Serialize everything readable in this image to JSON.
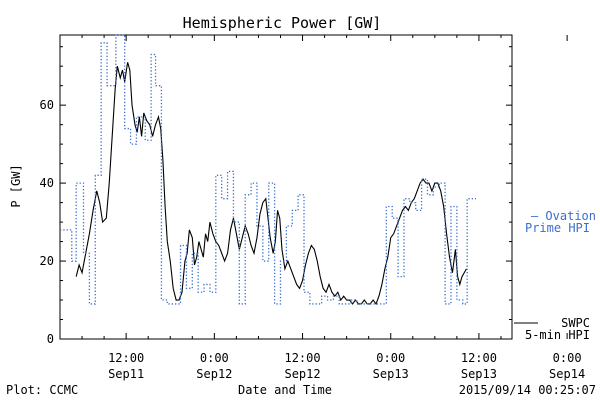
{
  "chart_data": {
    "type": "line",
    "title": "Hemispheric Power [GW]",
    "xlabel": "Date and Time",
    "ylabel": "P [GW]",
    "ylim": [
      0,
      78
    ],
    "xlim_hours": [
      0,
      61.5
    ],
    "y_ticks": [
      0,
      20,
      40,
      60
    ],
    "x_ticks": [
      {
        "hour": 9,
        "time": "12:00",
        "date": "Sep11"
      },
      {
        "hour": 21,
        "time": "0:00",
        "date": "Sep12"
      },
      {
        "hour": 33,
        "time": "12:00",
        "date": "Sep12"
      },
      {
        "hour": 45,
        "time": "0:00",
        "date": "Sep13"
      },
      {
        "hour": 57,
        "time": "12:00",
        "date": "Sep13"
      },
      {
        "hour": 69,
        "time": "0:00",
        "date": "Sep14"
      }
    ],
    "series": [
      {
        "name": "SWPC 5-min HPI",
        "legend_lines": [
          "SWPC",
          "5-min HPI"
        ],
        "color": "#000000",
        "style": "solid",
        "points": [
          [
            2.2,
            16
          ],
          [
            2.6,
            19
          ],
          [
            3.0,
            17
          ],
          [
            3.5,
            22
          ],
          [
            4.0,
            27
          ],
          [
            4.5,
            33
          ],
          [
            5.0,
            38
          ],
          [
            5.4,
            35
          ],
          [
            5.8,
            30
          ],
          [
            6.3,
            31
          ],
          [
            6.7,
            40
          ],
          [
            7.1,
            52
          ],
          [
            7.5,
            64
          ],
          [
            7.8,
            70
          ],
          [
            8.2,
            67
          ],
          [
            8.5,
            69
          ],
          [
            8.8,
            66
          ],
          [
            9.2,
            71
          ],
          [
            9.5,
            69
          ],
          [
            9.8,
            60
          ],
          [
            10.2,
            55
          ],
          [
            10.5,
            53
          ],
          [
            10.8,
            57
          ],
          [
            11.1,
            52
          ],
          [
            11.4,
            58
          ],
          [
            11.8,
            56
          ],
          [
            12.2,
            55
          ],
          [
            12.6,
            52
          ],
          [
            13.0,
            55
          ],
          [
            13.4,
            57
          ],
          [
            13.7,
            54
          ],
          [
            14.0,
            46
          ],
          [
            14.3,
            34
          ],
          [
            14.6,
            25
          ],
          [
            15.0,
            20
          ],
          [
            15.4,
            13
          ],
          [
            15.8,
            10
          ],
          [
            16.2,
            10
          ],
          [
            16.6,
            12
          ],
          [
            17.0,
            20
          ],
          [
            17.3,
            22
          ],
          [
            17.6,
            28
          ],
          [
            18.0,
            26
          ],
          [
            18.3,
            19
          ],
          [
            18.6,
            21
          ],
          [
            18.9,
            25
          ],
          [
            19.2,
            23
          ],
          [
            19.5,
            21
          ],
          [
            19.8,
            27
          ],
          [
            20.1,
            25
          ],
          [
            20.4,
            30
          ],
          [
            20.8,
            27
          ],
          [
            21.2,
            25
          ],
          [
            21.6,
            24
          ],
          [
            22.0,
            22
          ],
          [
            22.4,
            20
          ],
          [
            22.8,
            22
          ],
          [
            23.2,
            28
          ],
          [
            23.6,
            31
          ],
          [
            24.0,
            27
          ],
          [
            24.4,
            23
          ],
          [
            24.8,
            26
          ],
          [
            25.2,
            29
          ],
          [
            25.6,
            27
          ],
          [
            26.0,
            24
          ],
          [
            26.4,
            22
          ],
          [
            26.8,
            26
          ],
          [
            27.2,
            32
          ],
          [
            27.6,
            35
          ],
          [
            28.0,
            36
          ],
          [
            28.3,
            31
          ],
          [
            28.6,
            26
          ],
          [
            29.0,
            22
          ],
          [
            29.3,
            25
          ],
          [
            29.6,
            33
          ],
          [
            29.9,
            31
          ],
          [
            30.2,
            23
          ],
          [
            30.6,
            18
          ],
          [
            31.0,
            20
          ],
          [
            31.4,
            18
          ],
          [
            31.8,
            16
          ],
          [
            32.2,
            14
          ],
          [
            32.6,
            13
          ],
          [
            33.0,
            15
          ],
          [
            33.4,
            19
          ],
          [
            33.8,
            22
          ],
          [
            34.2,
            24
          ],
          [
            34.6,
            23
          ],
          [
            35.0,
            20
          ],
          [
            35.4,
            16
          ],
          [
            35.8,
            13
          ],
          [
            36.2,
            12
          ],
          [
            36.6,
            14
          ],
          [
            37.0,
            12
          ],
          [
            37.4,
            11
          ],
          [
            37.8,
            12
          ],
          [
            38.2,
            10
          ],
          [
            38.6,
            11
          ],
          [
            39.0,
            10
          ],
          [
            39.4,
            10
          ],
          [
            39.8,
            9
          ],
          [
            40.2,
            10
          ],
          [
            40.6,
            9
          ],
          [
            41.0,
            9
          ],
          [
            41.4,
            10
          ],
          [
            41.8,
            9
          ],
          [
            42.2,
            9
          ],
          [
            42.6,
            10
          ],
          [
            43.0,
            9
          ],
          [
            43.4,
            11
          ],
          [
            43.8,
            14
          ],
          [
            44.2,
            18
          ],
          [
            44.6,
            21
          ],
          [
            45.0,
            26
          ],
          [
            45.4,
            27
          ],
          [
            45.8,
            29
          ],
          [
            46.2,
            31
          ],
          [
            46.6,
            33
          ],
          [
            47.0,
            34
          ],
          [
            47.4,
            33
          ],
          [
            47.8,
            35
          ],
          [
            48.2,
            36
          ],
          [
            48.6,
            38
          ],
          [
            49.0,
            40
          ],
          [
            49.4,
            41
          ],
          [
            49.8,
            40
          ],
          [
            50.2,
            40
          ],
          [
            50.6,
            38
          ],
          [
            51.0,
            40
          ],
          [
            51.4,
            40
          ],
          [
            51.8,
            38
          ],
          [
            52.2,
            34
          ],
          [
            52.6,
            27
          ],
          [
            53.0,
            21
          ],
          [
            53.4,
            17
          ],
          [
            53.8,
            23
          ],
          [
            54.1,
            16
          ],
          [
            54.4,
            14
          ],
          [
            54.7,
            16
          ],
          [
            55.0,
            17
          ],
          [
            55.3,
            18
          ]
        ]
      },
      {
        "name": "Ovation Prime HPI",
        "legend_lines": [
          "— Ovation",
          "Prime HPI"
        ],
        "color": "#3a6fd0",
        "style": "step-dotted",
        "points": [
          [
            0.0,
            28
          ],
          [
            1.6,
            20
          ],
          [
            2.2,
            40
          ],
          [
            3.2,
            22
          ],
          [
            4.0,
            9
          ],
          [
            4.8,
            42
          ],
          [
            5.6,
            76
          ],
          [
            6.4,
            65
          ],
          [
            7.6,
            78
          ],
          [
            8.8,
            54
          ],
          [
            9.6,
            50
          ],
          [
            10.4,
            57
          ],
          [
            11.6,
            51
          ],
          [
            12.4,
            73
          ],
          [
            13.0,
            65
          ],
          [
            13.8,
            10
          ],
          [
            14.6,
            9
          ],
          [
            15.4,
            9
          ],
          [
            16.4,
            24
          ],
          [
            17.2,
            13
          ],
          [
            18.0,
            22
          ],
          [
            18.8,
            12
          ],
          [
            19.6,
            14
          ],
          [
            20.4,
            12
          ],
          [
            21.2,
            42
          ],
          [
            22.0,
            36
          ],
          [
            22.8,
            43
          ],
          [
            23.6,
            30
          ],
          [
            24.4,
            9
          ],
          [
            25.2,
            37
          ],
          [
            26.0,
            40
          ],
          [
            26.8,
            29
          ],
          [
            27.6,
            20
          ],
          [
            28.4,
            40
          ],
          [
            29.2,
            9
          ],
          [
            30.0,
            20
          ],
          [
            30.8,
            29
          ],
          [
            31.6,
            33
          ],
          [
            32.4,
            37
          ],
          [
            33.2,
            12
          ],
          [
            34.0,
            9
          ],
          [
            34.8,
            9
          ],
          [
            35.6,
            11
          ],
          [
            36.4,
            10
          ],
          [
            37.2,
            11
          ],
          [
            38.0,
            9
          ],
          [
            38.8,
            9
          ],
          [
            39.6,
            10
          ],
          [
            40.4,
            9
          ],
          [
            41.2,
            9
          ],
          [
            42.0,
            9
          ],
          [
            42.8,
            9
          ],
          [
            43.6,
            9
          ],
          [
            44.4,
            34
          ],
          [
            45.2,
            31
          ],
          [
            46.0,
            16
          ],
          [
            46.8,
            36
          ],
          [
            47.6,
            35
          ],
          [
            48.4,
            33
          ],
          [
            49.2,
            41
          ],
          [
            50.0,
            37
          ],
          [
            50.8,
            39
          ],
          [
            51.6,
            40
          ],
          [
            52.4,
            9
          ],
          [
            53.2,
            34
          ],
          [
            54.0,
            10
          ],
          [
            54.8,
            9
          ],
          [
            55.4,
            36
          ],
          [
            56.0,
            36
          ]
        ]
      }
    ],
    "footer": {
      "left": "Plot: CCMC",
      "right": "2015/09/14 00:25:07"
    }
  }
}
